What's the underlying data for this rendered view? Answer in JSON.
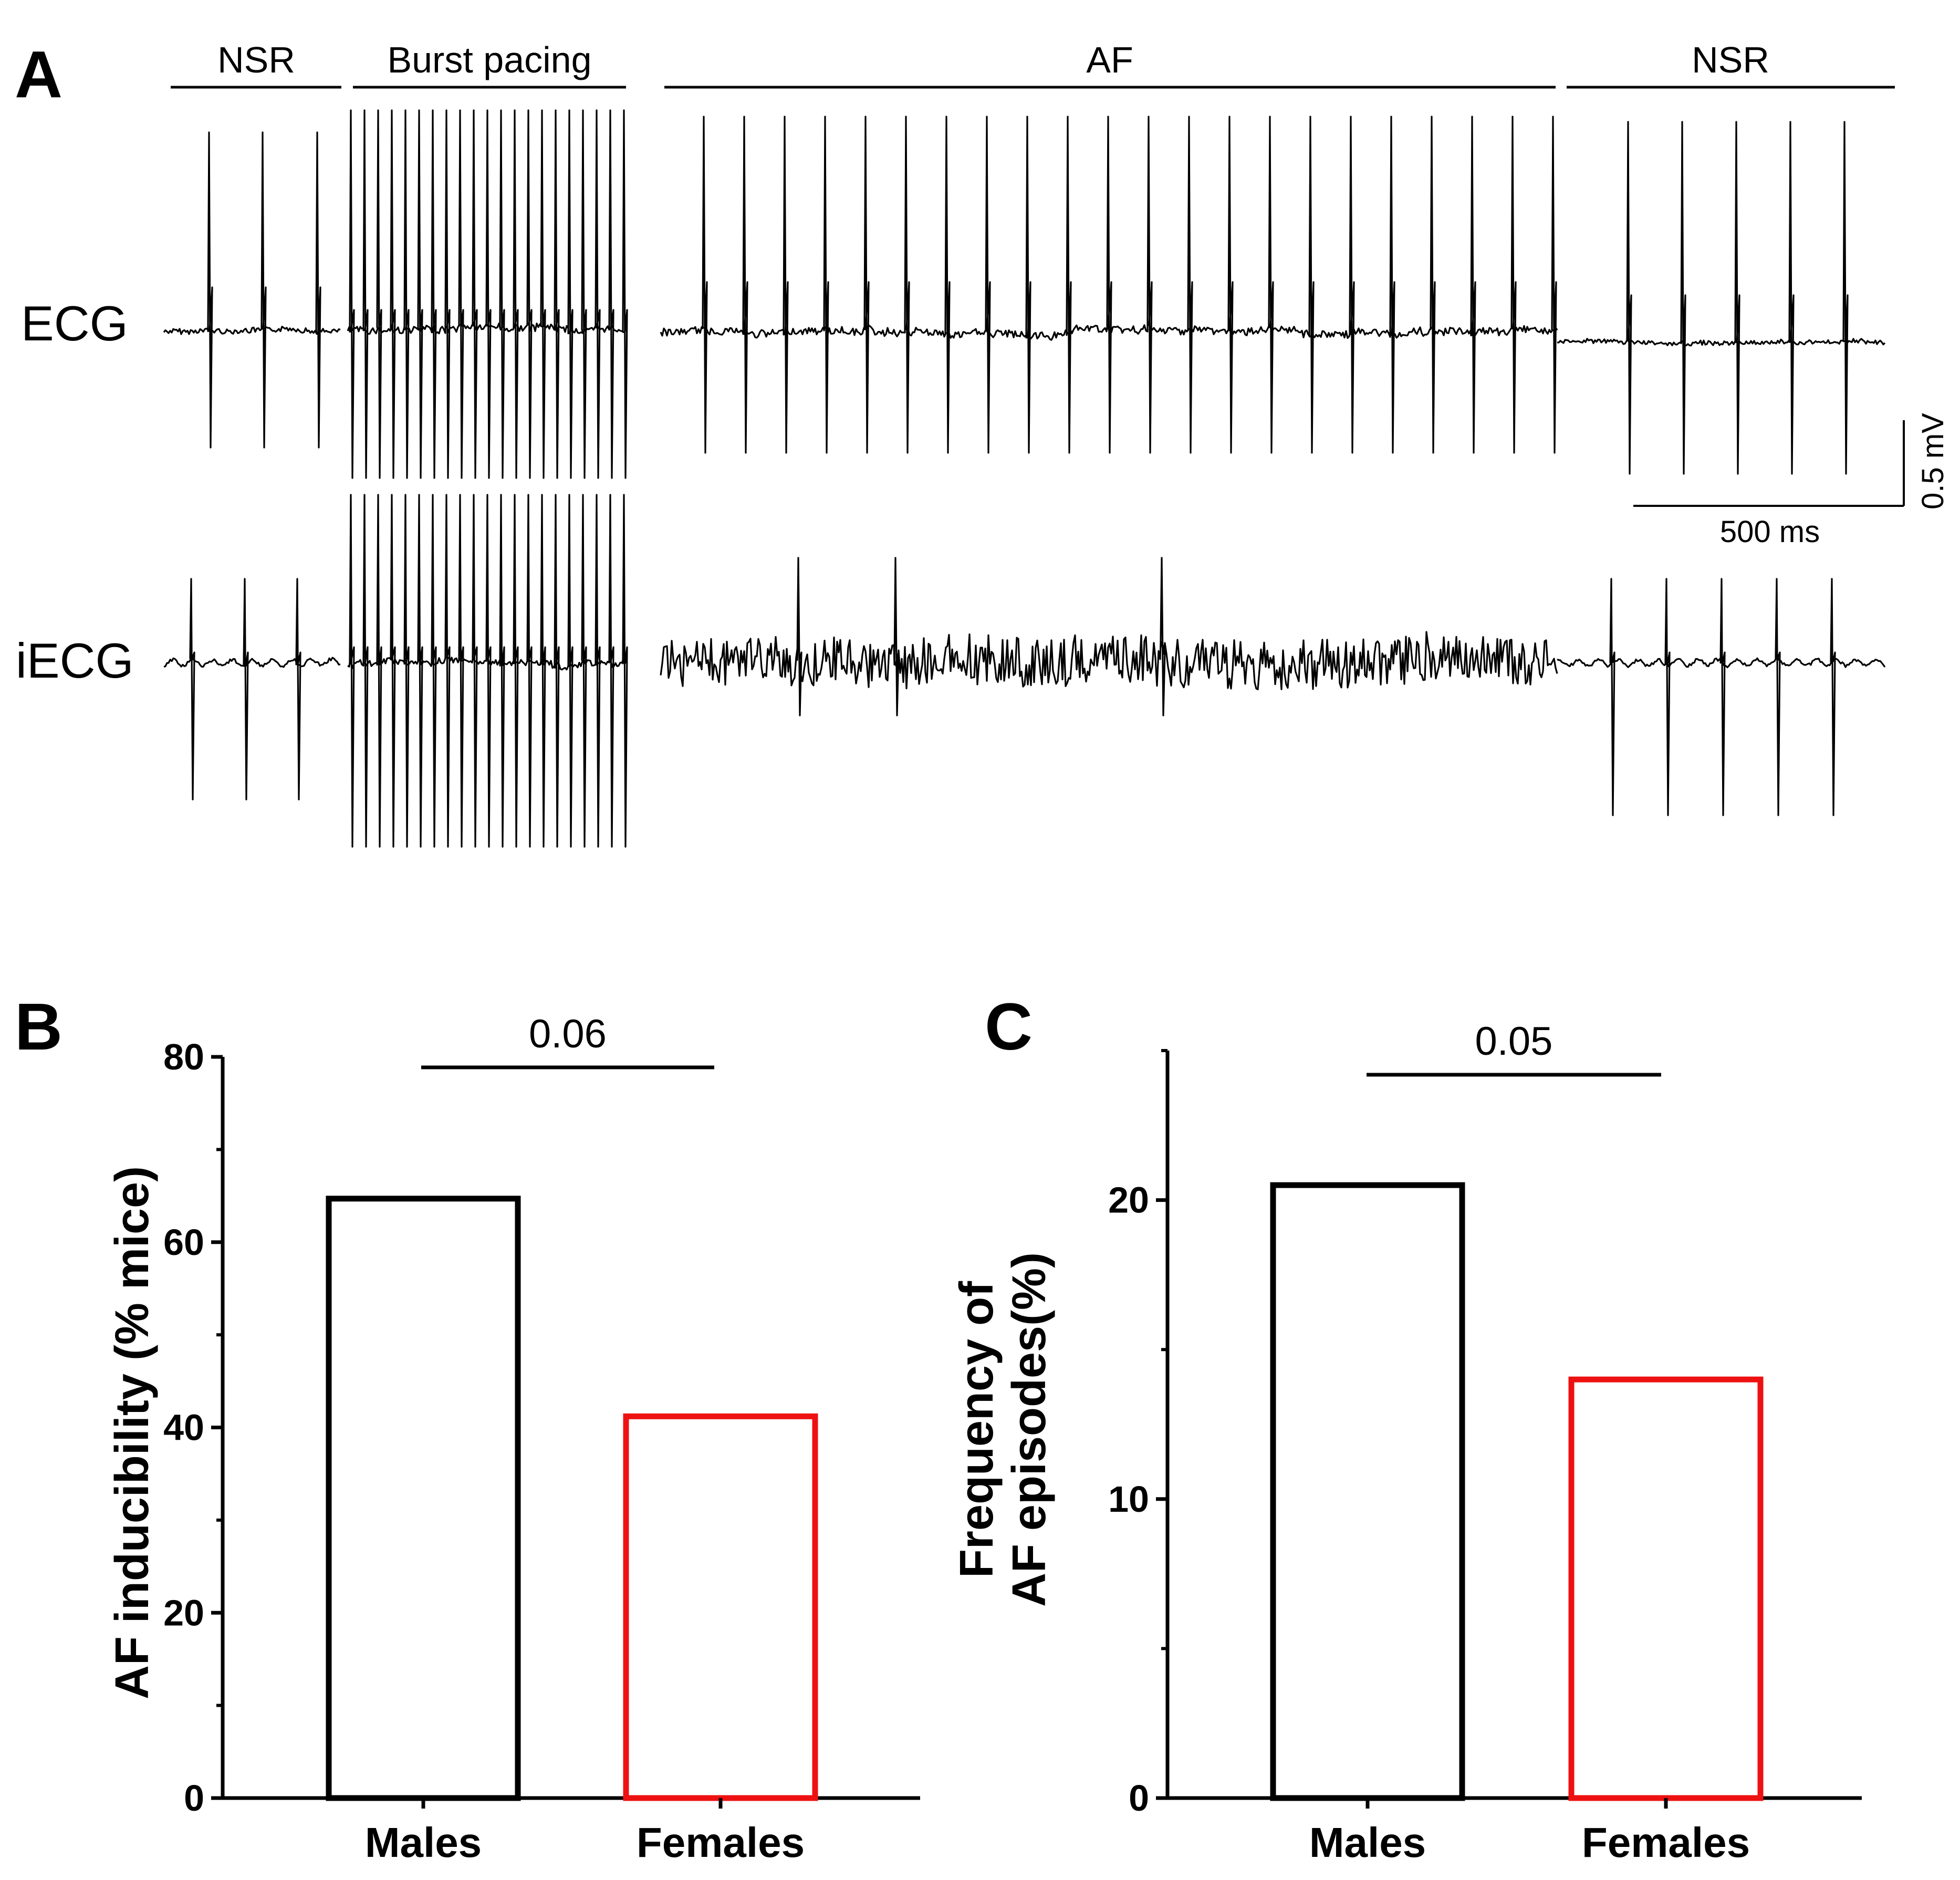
{
  "panel_a": {
    "label": "A",
    "segments": [
      {
        "label": "NSR"
      },
      {
        "label": "Burst pacing"
      },
      {
        "label": "AF"
      },
      {
        "label": "NSR"
      }
    ],
    "traces": [
      {
        "label": "ECG"
      },
      {
        "label": "iECG"
      }
    ],
    "scale_bar": {
      "voltage": "0.5 mV",
      "time": "500 ms"
    }
  },
  "chart_data": [
    {
      "panel": "B",
      "type": "bar",
      "categories": [
        "Males",
        "Females"
      ],
      "values": [
        64.7,
        41.2
      ],
      "colors": [
        "#000000",
        "#ee1111"
      ],
      "fill": "none",
      "ylabel": "AF inducibility (% mice)",
      "ylim": [
        0,
        80
      ],
      "yticks": [
        0,
        20,
        40,
        60,
        80
      ],
      "minor_ticks": [
        10,
        30,
        50,
        70
      ],
      "comparison": {
        "from": "Males",
        "to": "Females",
        "p_value": "0.06"
      }
    },
    {
      "panel": "C",
      "type": "bar",
      "categories": [
        "Males",
        "Females"
      ],
      "values": [
        20.5,
        14.0
      ],
      "colors": [
        "#000000",
        "#ee1111"
      ],
      "fill": "none",
      "ylabel_lines": [
        "Frequency of",
        "AF episodes(%)"
      ],
      "ylim": [
        0,
        25
      ],
      "yticks": [
        0,
        10,
        20
      ],
      "minor_ticks": [
        5,
        15,
        25
      ],
      "comparison": {
        "from": "Males",
        "to": "Females",
        "p_value": "0.05"
      }
    }
  ]
}
